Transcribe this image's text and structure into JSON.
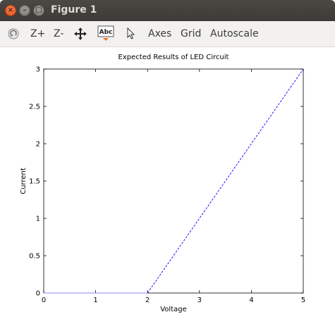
{
  "window": {
    "title": "Figure 1",
    "close_glyph": "×",
    "minimize_glyph": "–",
    "maximize_glyph": "□"
  },
  "toolbar": {
    "items": [
      {
        "label": "",
        "icon": "rotate-icon"
      },
      {
        "label": "Z+"
      },
      {
        "label": "Z-"
      },
      {
        "label": "",
        "icon": "pan-move-icon"
      },
      {
        "label": "Abc",
        "icon": "text-insert-icon"
      },
      {
        "label": "",
        "icon": "select-pointer-icon"
      },
      {
        "label": "Axes"
      },
      {
        "label": "Grid"
      },
      {
        "label": "Autoscale"
      }
    ]
  },
  "chart_data": {
    "type": "line",
    "title": "Expected Results of LED Circuit",
    "xlabel": "Voltage",
    "ylabel": "Current",
    "xlim": [
      0,
      5
    ],
    "ylim": [
      0,
      3
    ],
    "xticks": [
      "0",
      "1",
      "2",
      "3",
      "4",
      "5"
    ],
    "yticks": [
      "0",
      "0.5",
      "1",
      "1.5",
      "2",
      "2.5",
      "3"
    ],
    "grid": false,
    "series": [
      {
        "x": [
          0,
          2
        ],
        "y": [
          0,
          0
        ],
        "style": "solid",
        "color": "#8888ff"
      },
      {
        "x": [
          2,
          5
        ],
        "y": [
          0,
          3
        ],
        "style": "dashed",
        "color": "#0000ff"
      }
    ]
  }
}
